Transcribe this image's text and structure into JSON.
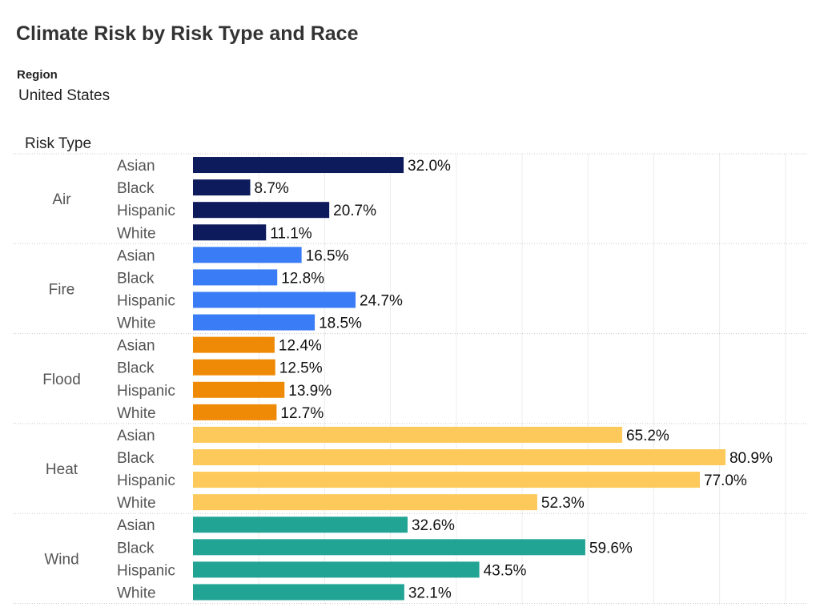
{
  "title": "Climate Risk by Risk Type and Race",
  "filter": {
    "label": "Region",
    "value": "United States"
  },
  "chart_data": {
    "type": "bar",
    "orientation": "horizontal",
    "title": "Climate Risk by Risk Type and Race",
    "row_header": "Risk Type",
    "xlim": [
      0,
      100
    ],
    "value_format": "percent_1dp",
    "grid": true,
    "groups": [
      {
        "name": "Air",
        "color": "#0d1a5c",
        "categories": [
          "Asian",
          "Black",
          "Hispanic",
          "White"
        ],
        "values": [
          32.0,
          8.7,
          20.7,
          11.1
        ]
      },
      {
        "name": "Fire",
        "color": "#3a7cf5",
        "categories": [
          "Asian",
          "Black",
          "Hispanic",
          "White"
        ],
        "values": [
          16.5,
          12.8,
          24.7,
          18.5
        ]
      },
      {
        "name": "Flood",
        "color": "#ef8a06",
        "categories": [
          "Asian",
          "Black",
          "Hispanic",
          "White"
        ],
        "values": [
          12.4,
          12.5,
          13.9,
          12.7
        ]
      },
      {
        "name": "Heat",
        "color": "#fdc95a",
        "categories": [
          "Asian",
          "Black",
          "Hispanic",
          "White"
        ],
        "values": [
          65.2,
          80.9,
          77.0,
          52.3
        ]
      },
      {
        "name": "Wind",
        "color": "#22a495",
        "categories": [
          "Asian",
          "Black",
          "Hispanic",
          "White"
        ],
        "values": [
          32.6,
          59.6,
          43.5,
          32.1
        ]
      }
    ]
  }
}
